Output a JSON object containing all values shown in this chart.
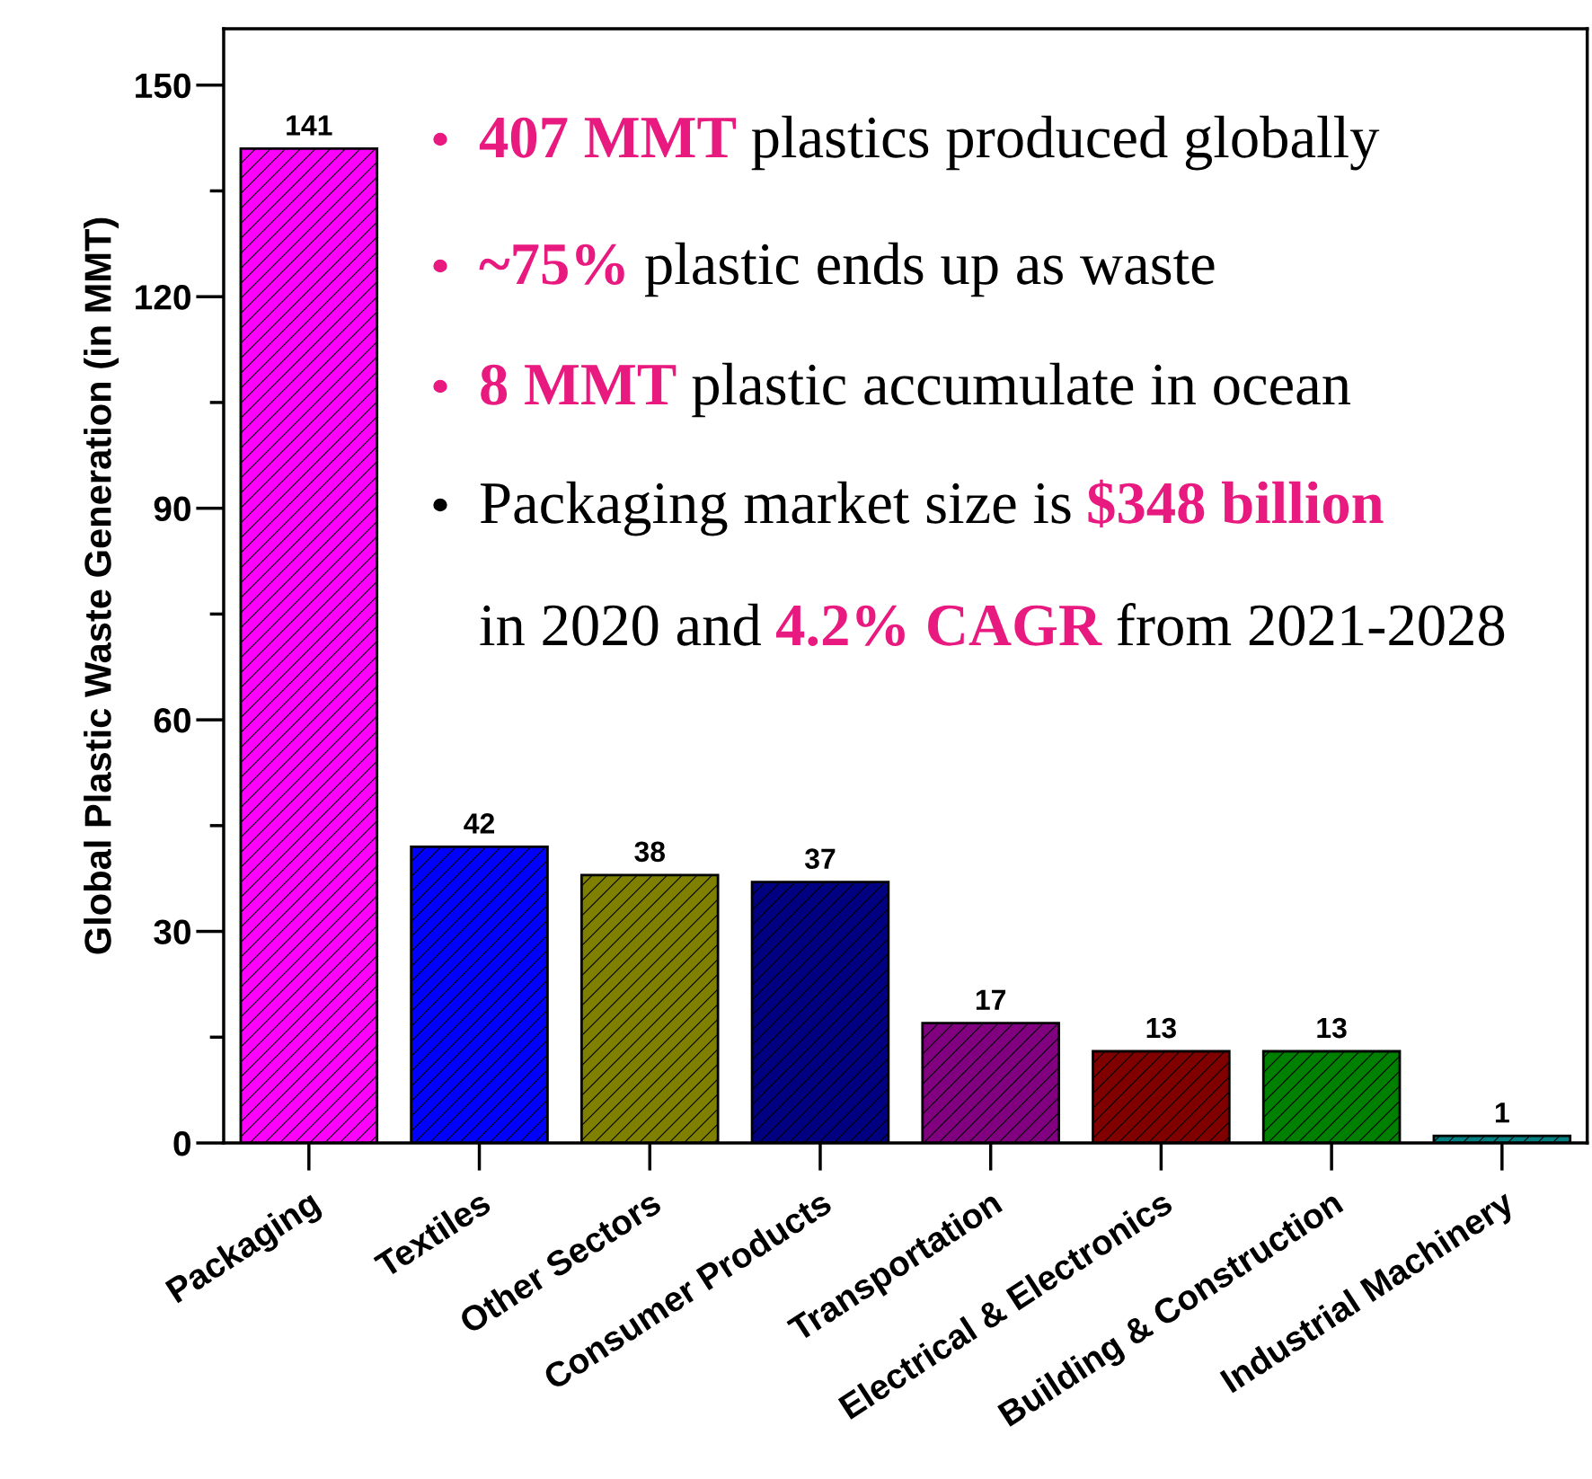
{
  "chart_data": {
    "type": "bar",
    "ylabel": "Global Plastic Waste Generation (in MMT)",
    "categories": [
      "Packaging",
      "Textiles",
      "Other Sectors",
      "Consumer Products",
      "Transportation",
      "Electrical & Electronics",
      "Building & Construction",
      "Industrial Machinery"
    ],
    "values": [
      141,
      42,
      38,
      37,
      17,
      13,
      13,
      1
    ],
    "colors": [
      "#ff00ff",
      "#0000ff",
      "#808000",
      "#000080",
      "#800080",
      "#800000",
      "#008000",
      "#008080"
    ],
    "ylim": [
      0,
      158
    ],
    "yticks": [
      0,
      {
        "value": 15,
        "label": null
      },
      30,
      {
        "value": 45,
        "label": null
      },
      60,
      {
        "value": 75,
        "label": null
      },
      90,
      {
        "value": 105,
        "label": null
      },
      120,
      {
        "value": 135,
        "label": null
      },
      150
    ],
    "data_labels": true,
    "grid": false,
    "annotations": [
      "407 MMT",
      "plastics produced globally",
      "~75%",
      "plastic ends up as waste",
      "8 MMT",
      "plastic accumulate in ocean",
      "Packaging market size is",
      "$348 billion",
      "in 2020 and",
      "4.2% CAGR",
      "from 2021-2028"
    ]
  }
}
